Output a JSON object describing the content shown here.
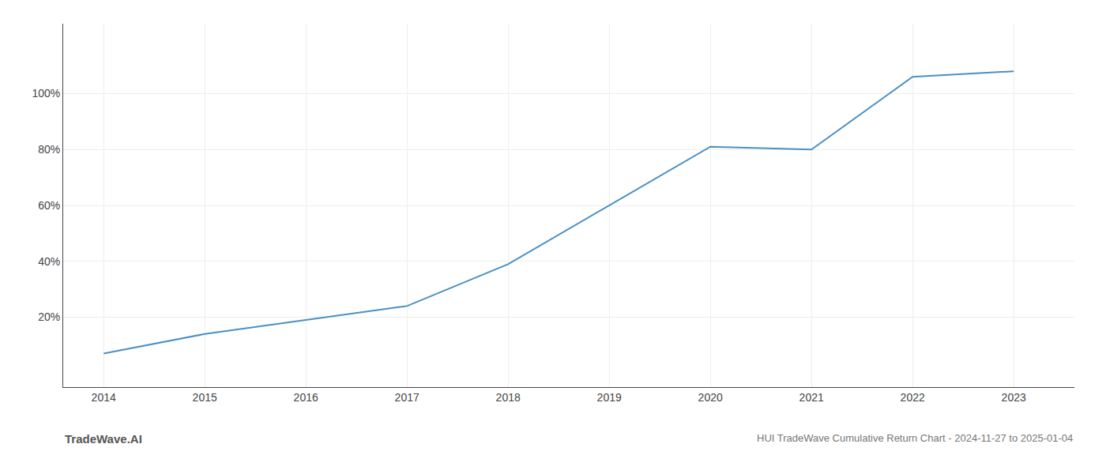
{
  "chart_data": {
    "type": "line",
    "title": "HUI TradeWave Cumulative Return Chart - 2024-11-27 to 2025-01-04",
    "annotations": [
      "TradeWave.AI"
    ],
    "x": [
      2014,
      2015,
      2016,
      2017,
      2018,
      2019,
      2020,
      2021,
      2022,
      2023
    ],
    "values": [
      7,
      14,
      19,
      24,
      39,
      60,
      81,
      80,
      106,
      108
    ],
    "color": "#4a90c4",
    "xlim": [
      2013.6,
      2023.6
    ],
    "xticks": [
      2014,
      2015,
      2016,
      2017,
      2018,
      2019,
      2020,
      2021,
      2022,
      2023
    ],
    "ylim": [
      -5,
      125
    ],
    "yticks": [
      {
        "value": 20,
        "label": "20%"
      },
      {
        "value": 40,
        "label": "40%"
      },
      {
        "value": 60,
        "label": "60%"
      },
      {
        "value": 80,
        "label": "80%"
      },
      {
        "value": 100,
        "label": "100%"
      }
    ],
    "grid": true
  }
}
